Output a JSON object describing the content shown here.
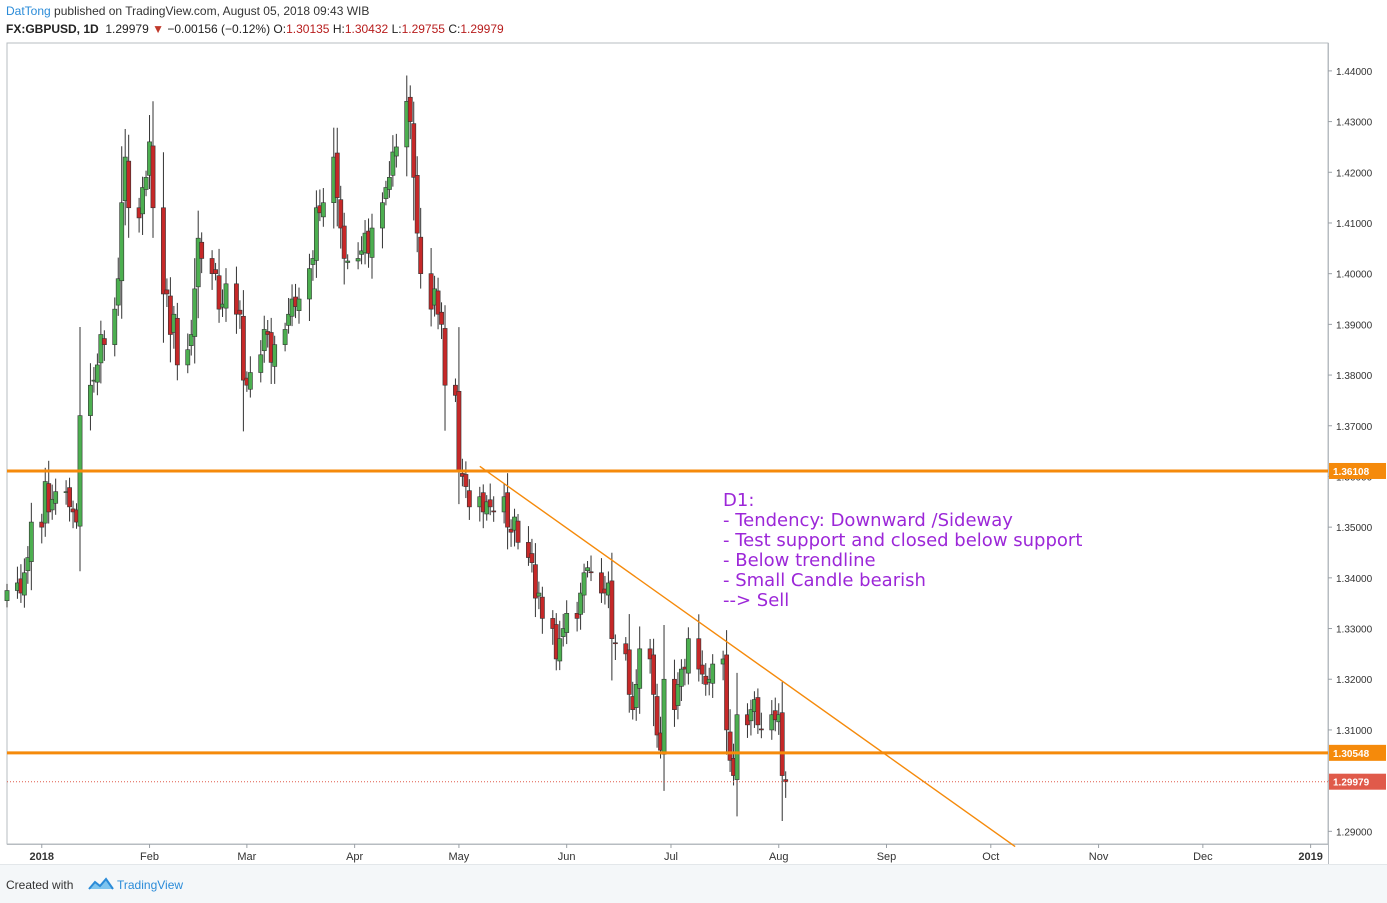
{
  "header": {
    "author": "DatTong",
    "published": "published on TradingView.com, August 05, 2018 09:43 WIB",
    "symbol": "FX:GBPUSD, 1D",
    "last": "1.29979",
    "change": "−0.00156 (−0.12%)",
    "open_label": "O:",
    "open": "1.30135",
    "high_label": "H:",
    "high": "1.30432",
    "low_label": "L:",
    "low": "1.29755",
    "close_label": "C:",
    "close": "1.29979"
  },
  "footer": {
    "created_with": "Created with",
    "brand": "TradingView"
  },
  "annotation": {
    "lines": [
      "D1:",
      "- Tendency: Downward /Sideway",
      "- Test support and closed below support",
      "- Below trendline",
      "- Small Candle bearish",
      "--> Sell"
    ],
    "color": "#9c27d8"
  },
  "colors": {
    "up": "#4caf50",
    "down": "#c62828",
    "level": "#f58a0b",
    "trend": "#f58a0b",
    "last_price": "#e05a4a"
  },
  "chart_data": {
    "type": "candlestick",
    "symbol": "FX:GBPUSD",
    "timeframe": "1D",
    "ylim": [
      1.2875,
      1.4455
    ],
    "y_ticks": [
      "1.29000",
      "1.30000",
      "1.31000",
      "1.32000",
      "1.33000",
      "1.34000",
      "1.35000",
      "1.36000",
      "1.37000",
      "1.38000",
      "1.39000",
      "1.40000",
      "1.41000",
      "1.42000",
      "1.43000",
      "1.44000"
    ],
    "x_start": "2017-12-22",
    "x_end": "2019-01-06",
    "x_ticks": [
      {
        "date": "2018-01-01",
        "label": "2018",
        "bold": true
      },
      {
        "date": "2018-02-01",
        "label": "Feb"
      },
      {
        "date": "2018-03-01",
        "label": "Mar"
      },
      {
        "date": "2018-04-01",
        "label": "Apr"
      },
      {
        "date": "2018-05-01",
        "label": "May"
      },
      {
        "date": "2018-06-01",
        "label": "Jun"
      },
      {
        "date": "2018-07-01",
        "label": "Jul"
      },
      {
        "date": "2018-08-01",
        "label": "Aug"
      },
      {
        "date": "2018-09-01",
        "label": "Sep"
      },
      {
        "date": "2018-10-01",
        "label": "Oct"
      },
      {
        "date": "2018-11-01",
        "label": "Nov"
      },
      {
        "date": "2018-12-01",
        "label": "Dec"
      },
      {
        "date": "2019-01-01",
        "label": "2019",
        "bold": true
      }
    ],
    "horizontal_levels": [
      {
        "price": 1.36108,
        "label": "1.36108"
      },
      {
        "price": 1.30548,
        "label": "1.30548"
      }
    ],
    "last_price": {
      "price": 1.29979,
      "label": "1.29979"
    },
    "trendline": {
      "from": {
        "date": "2018-05-07",
        "price": 1.362
      },
      "to": {
        "date": "2018-10-08",
        "price": 1.287
      }
    },
    "closes": [
      [
        "2017-12-22",
        1.3375
      ],
      [
        "2017-12-25",
        1.339
      ],
      [
        "2017-12-26",
        1.337
      ],
      [
        "2017-12-27",
        1.341
      ],
      [
        "2017-12-28",
        1.344
      ],
      [
        "2017-12-29",
        1.351
      ],
      [
        "2018-01-01",
        1.35
      ],
      [
        "2018-01-02",
        1.359
      ],
      [
        "2018-01-03",
        1.353
      ],
      [
        "2018-01-04",
        1.3555
      ],
      [
        "2018-01-05",
        1.357
      ],
      [
        "2018-01-08",
        1.357
      ],
      [
        "2018-01-09",
        1.354
      ],
      [
        "2018-01-10",
        1.353
      ],
      [
        "2018-01-11",
        1.351
      ],
      [
        "2018-01-12",
        1.372
      ],
      [
        "2018-01-15",
        1.378
      ],
      [
        "2018-01-16",
        1.379
      ],
      [
        "2018-01-17",
        1.382
      ],
      [
        "2018-01-18",
        1.388
      ],
      [
        "2018-01-19",
        1.386
      ],
      [
        "2018-01-22",
        1.393
      ],
      [
        "2018-01-23",
        1.399
      ],
      [
        "2018-01-24",
        1.414
      ],
      [
        "2018-01-25",
        1.423
      ],
      [
        "2018-01-26",
        1.413
      ],
      [
        "2018-01-29",
        1.411
      ],
      [
        "2018-01-30",
        1.417
      ],
      [
        "2018-01-31",
        1.419
      ],
      [
        "2018-02-01",
        1.426
      ],
      [
        "2018-02-02",
        1.413
      ],
      [
        "2018-02-05",
        1.396
      ],
      [
        "2018-02-06",
        1.396
      ],
      [
        "2018-02-07",
        1.388
      ],
      [
        "2018-02-08",
        1.392
      ],
      [
        "2018-02-09",
        1.382
      ],
      [
        "2018-02-12",
        1.385
      ],
      [
        "2018-02-13",
        1.388
      ],
      [
        "2018-02-14",
        1.397
      ],
      [
        "2018-02-15",
        1.407
      ],
      [
        "2018-02-16",
        1.403
      ],
      [
        "2018-02-19",
        1.4
      ],
      [
        "2018-02-20",
        1.4
      ],
      [
        "2018-02-21",
        1.393
      ],
      [
        "2018-02-22",
        1.394
      ],
      [
        "2018-02-23",
        1.398
      ],
      [
        "2018-02-26",
        1.392
      ],
      [
        "2018-02-27",
        1.392
      ],
      [
        "2018-02-28",
        1.379
      ],
      [
        "2018-03-01",
        1.378
      ],
      [
        "2018-03-02",
        1.3805
      ],
      [
        "2018-03-05",
        1.384
      ],
      [
        "2018-03-06",
        1.389
      ],
      [
        "2018-03-07",
        1.388
      ],
      [
        "2018-03-08",
        1.3825
      ],
      [
        "2018-03-09",
        1.386
      ],
      [
        "2018-03-12",
        1.389
      ],
      [
        "2018-03-13",
        1.392
      ],
      [
        "2018-03-14",
        1.395
      ],
      [
        "2018-03-15",
        1.3935
      ],
      [
        "2018-03-16",
        1.395
      ],
      [
        "2018-03-19",
        1.401
      ],
      [
        "2018-03-20",
        1.403
      ],
      [
        "2018-03-21",
        1.413
      ],
      [
        "2018-03-22",
        1.412
      ],
      [
        "2018-03-23",
        1.414
      ],
      [
        "2018-03-26",
        1.423
      ],
      [
        "2018-03-27",
        1.415
      ],
      [
        "2018-03-28",
        1.409
      ],
      [
        "2018-03-29",
        1.403
      ],
      [
        "2018-03-30",
        1.4025
      ],
      [
        "2018-04-02",
        1.403
      ],
      [
        "2018-04-03",
        1.4045
      ],
      [
        "2018-04-04",
        1.408
      ],
      [
        "2018-04-05",
        1.404
      ],
      [
        "2018-04-06",
        1.409
      ],
      [
        "2018-04-09",
        1.414
      ],
      [
        "2018-04-10",
        1.417
      ],
      [
        "2018-04-11",
        1.419
      ],
      [
        "2018-04-12",
        1.424
      ],
      [
        "2018-04-13",
        1.425
      ],
      [
        "2018-04-16",
        1.434
      ],
      [
        "2018-04-17",
        1.43
      ],
      [
        "2018-04-18",
        1.419
      ],
      [
        "2018-04-19",
        1.408
      ],
      [
        "2018-04-20",
        1.4
      ],
      [
        "2018-04-23",
        1.393
      ],
      [
        "2018-04-24",
        1.397
      ],
      [
        "2018-04-25",
        1.392
      ],
      [
        "2018-04-26",
        1.39
      ],
      [
        "2018-04-27",
        1.378
      ],
      [
        "2018-04-30",
        1.376
      ],
      [
        "2018-05-01",
        1.361
      ],
      [
        "2018-05-02",
        1.36
      ],
      [
        "2018-05-03",
        1.358
      ],
      [
        "2018-05-04",
        1.354
      ],
      [
        "2018-05-07",
        1.356
      ],
      [
        "2018-05-08",
        1.353
      ],
      [
        "2018-05-09",
        1.355
      ],
      [
        "2018-05-10",
        1.354
      ],
      [
        "2018-05-11",
        1.353
      ],
      [
        "2018-05-14",
        1.356
      ],
      [
        "2018-05-15",
        1.35
      ],
      [
        "2018-05-16",
        1.349
      ],
      [
        "2018-05-17",
        1.352
      ],
      [
        "2018-05-18",
        1.347
      ],
      [
        "2018-05-21",
        1.344
      ],
      [
        "2018-05-22",
        1.343
      ],
      [
        "2018-05-23",
        1.336
      ],
      [
        "2018-05-24",
        1.337
      ],
      [
        "2018-05-25",
        1.332
      ],
      [
        "2018-05-28",
        1.33
      ],
      [
        "2018-05-29",
        1.324
      ],
      [
        "2018-05-30",
        1.328
      ],
      [
        "2018-05-31",
        1.33
      ],
      [
        "2018-06-01",
        1.333
      ],
      [
        "2018-06-04",
        1.332
      ],
      [
        "2018-06-05",
        1.337
      ],
      [
        "2018-06-06",
        1.341
      ],
      [
        "2018-06-07",
        1.342
      ],
      [
        "2018-06-08",
        1.341
      ],
      [
        "2018-06-11",
        1.337
      ],
      [
        "2018-06-12",
        1.337
      ],
      [
        "2018-06-13",
        1.339
      ],
      [
        "2018-06-14",
        1.328
      ],
      [
        "2018-06-15",
        1.327
      ],
      [
        "2018-06-18",
        1.325
      ],
      [
        "2018-06-19",
        1.317
      ],
      [
        "2018-06-20",
        1.314
      ],
      [
        "2018-06-21",
        1.319
      ],
      [
        "2018-06-22",
        1.326
      ],
      [
        "2018-06-25",
        1.324
      ],
      [
        "2018-06-26",
        1.317
      ],
      [
        "2018-06-27",
        1.309
      ],
      [
        "2018-06-28",
        1.306
      ],
      [
        "2018-06-29",
        1.32
      ],
      [
        "2018-07-02",
        1.314
      ],
      [
        "2018-07-03",
        1.319
      ],
      [
        "2018-07-04",
        1.322
      ],
      [
        "2018-07-05",
        1.322
      ],
      [
        "2018-07-06",
        1.328
      ],
      [
        "2018-07-09",
        1.322
      ],
      [
        "2018-07-10",
        1.321
      ],
      [
        "2018-07-11",
        1.319
      ],
      [
        "2018-07-12",
        1.32
      ],
      [
        "2018-07-13",
        1.323
      ],
      [
        "2018-07-16",
        1.324
      ],
      [
        "2018-07-17",
        1.31
      ],
      [
        "2018-07-18",
        1.304
      ],
      [
        "2018-07-19",
        1.301
      ],
      [
        "2018-07-20",
        1.313
      ],
      [
        "2018-07-23",
        1.311
      ],
      [
        "2018-07-24",
        1.314
      ],
      [
        "2018-07-25",
        1.316
      ],
      [
        "2018-07-26",
        1.311
      ],
      [
        "2018-07-27",
        1.31
      ],
      [
        "2018-07-30",
        1.313
      ],
      [
        "2018-07-31",
        1.312
      ],
      [
        "2018-08-01",
        1.313
      ],
      [
        "2018-08-02",
        1.301
      ],
      [
        "2018-08-03",
        1.2998
      ]
    ]
  }
}
